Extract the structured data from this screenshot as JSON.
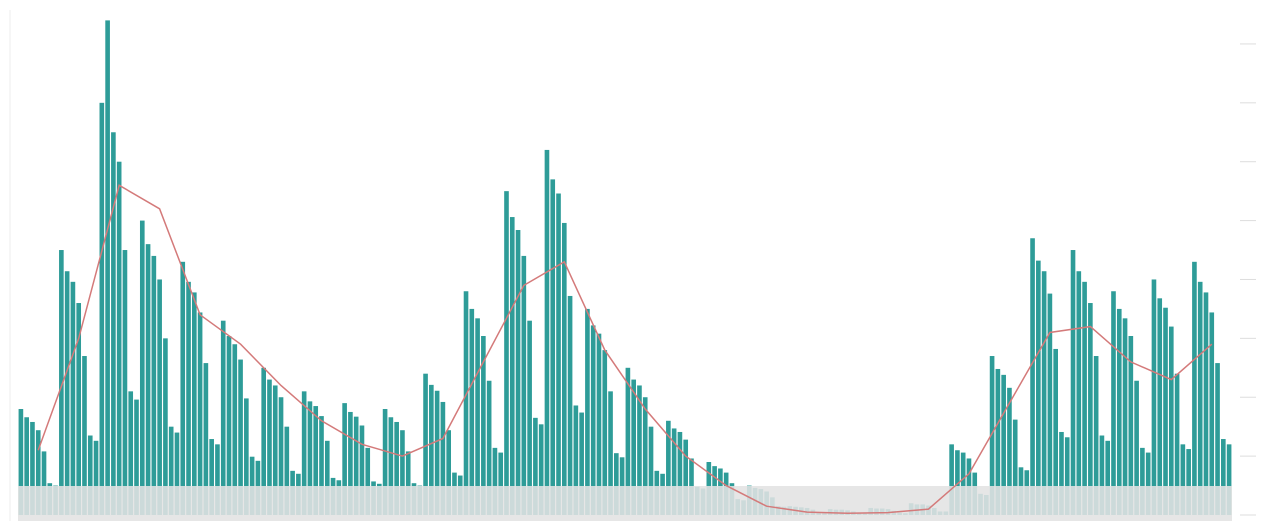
{
  "chart_data": {
    "type": "bar",
    "ylim": [
      0,
      8.5
    ],
    "yticks": [
      0,
      1,
      2,
      3,
      4,
      5,
      6,
      7,
      8
    ],
    "series": [
      {
        "color": "#2e9c98",
        "values": [
          1.8,
          1.66,
          1.58,
          1.44,
          1.08,
          0.54,
          0.5,
          4.5,
          4.14,
          3.96,
          3.6,
          2.7,
          1.35,
          1.26,
          7.0,
          8.4,
          6.5,
          6.0,
          4.5,
          2.1,
          1.96,
          5,
          4.6,
          4.4,
          4,
          3,
          1.5,
          1.4,
          4.3,
          3.96,
          3.78,
          3.44,
          2.58,
          1.29,
          1.2,
          3.3,
          3.04,
          2.9,
          2.64,
          1.98,
          0.99,
          0.92,
          2.5,
          2.3,
          2.2,
          2,
          1.5,
          0.75,
          0.7,
          2.1,
          1.93,
          1.85,
          1.68,
          1.26,
          0.63,
          0.59,
          1.9,
          1.75,
          1.67,
          1.52,
          1.14,
          0.57,
          0.53,
          1.8,
          1.66,
          1.58,
          1.44,
          1.08,
          0.54,
          0.5,
          2.4,
          2.21,
          2.11,
          1.92,
          1.44,
          0.72,
          0.67,
          3.8,
          3.5,
          3.34,
          3.04,
          2.28,
          1.14,
          1.06,
          5.5,
          5.06,
          4.84,
          4.4,
          3.3,
          1.65,
          1.54,
          6.2,
          5.7,
          5.46,
          4.96,
          3.72,
          1.86,
          1.74,
          3.5,
          3.22,
          3.08,
          2.8,
          2.1,
          1.05,
          0.98,
          2.5,
          2.3,
          2.2,
          2,
          1.5,
          0.75,
          0.7,
          1.6,
          1.47,
          1.41,
          1.28,
          0.96,
          0.48,
          0.45,
          0.9,
          0.83,
          0.79,
          0.72,
          0.54,
          0.27,
          0.25,
          0.5,
          0.46,
          0.44,
          0.4,
          0.3,
          0.15,
          0.14,
          0.15,
          0.14,
          0.13,
          0.12,
          0.09,
          0.05,
          0.04,
          0.1,
          0.09,
          0.09,
          0.08,
          0.06,
          0.03,
          0.03,
          0.12,
          0.11,
          0.11,
          0.1,
          0.07,
          0.04,
          0.03,
          0.2,
          0.18,
          0.18,
          0.16,
          0.12,
          0.06,
          0.06,
          1.2,
          1.1,
          1.06,
          0.96,
          0.72,
          0.36,
          0.34,
          2.7,
          2.48,
          2.38,
          2.16,
          1.62,
          0.81,
          0.76,
          4.7,
          4.32,
          4.14,
          3.76,
          2.82,
          1.41,
          1.32,
          4.5,
          4.14,
          3.96,
          3.6,
          2.7,
          1.35,
          1.26,
          3.8,
          3.5,
          3.34,
          3.04,
          2.28,
          1.14,
          1.06,
          4,
          3.68,
          3.52,
          3.2,
          2.4,
          1.2,
          1.12,
          4.3,
          3.96,
          3.78,
          3.44,
          2.58,
          1.29,
          1.2
        ]
      }
    ],
    "line": {
      "color": "#d47a7a",
      "x": [
        3,
        10,
        17,
        24,
        31,
        38,
        45,
        52,
        59,
        66,
        73,
        80,
        87,
        94,
        101,
        108,
        115,
        122,
        129,
        136,
        143,
        150,
        157,
        164,
        171,
        178,
        185,
        192,
        199,
        206
      ],
      "values": [
        1.1,
        3.0,
        5.6,
        5.2,
        3.4,
        2.9,
        2.2,
        1.6,
        1.2,
        1.0,
        1.3,
        2.6,
        3.9,
        4.3,
        2.8,
        1.8,
        1.0,
        0.5,
        0.15,
        0.05,
        0.03,
        0.04,
        0.1,
        0.7,
        1.9,
        3.1,
        3.2,
        2.6,
        2.3,
        2.9
      ]
    }
  }
}
